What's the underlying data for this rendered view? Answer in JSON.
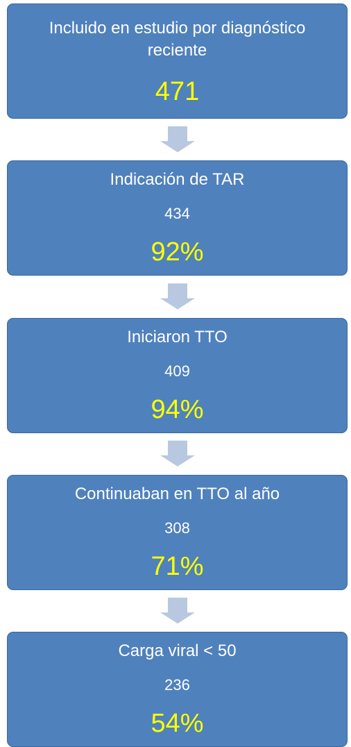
{
  "nodes": [
    {
      "label": "Incluido en estudio por diagnóstico reciente",
      "percent": "471"
    },
    {
      "label": "Indicación de TAR",
      "count": "434",
      "percent": "92%"
    },
    {
      "label": "Iniciaron TTO",
      "count": "409",
      "percent": "94%"
    },
    {
      "label": "Continuaban en TTO al año",
      "count": "308",
      "percent": "71%"
    },
    {
      "label": "Carga viral < 50",
      "count": "236",
      "percent": "54%"
    }
  ]
}
